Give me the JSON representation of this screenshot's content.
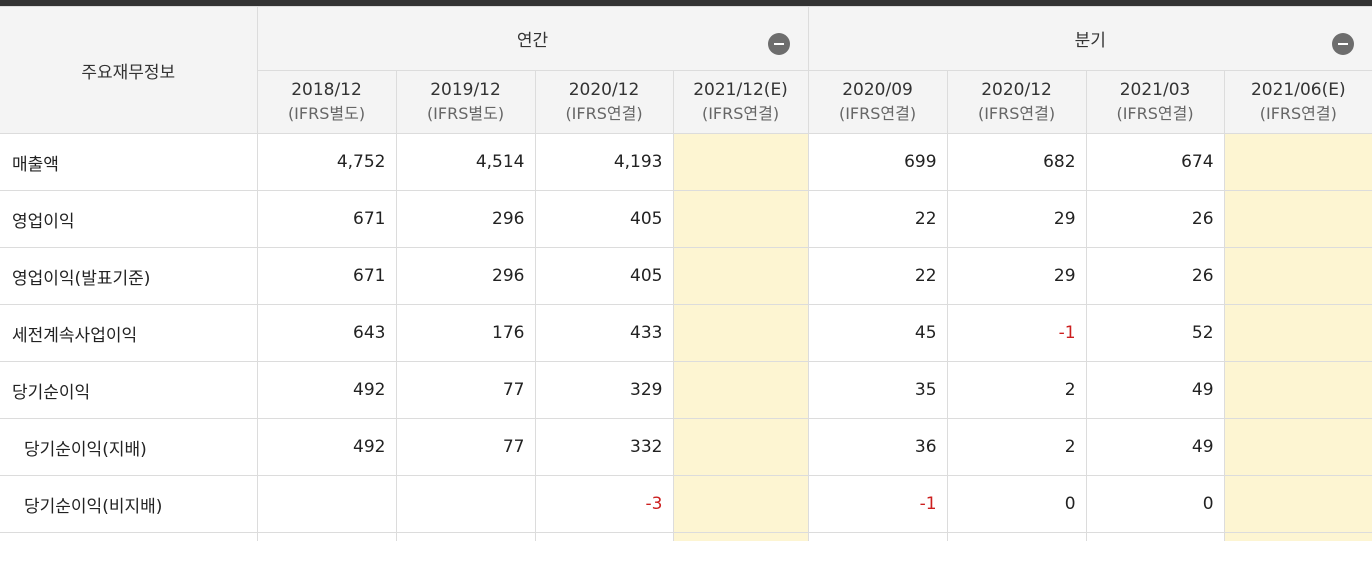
{
  "header": {
    "corner": "주요재무정보",
    "groups": {
      "annual": "연간",
      "quarter": "분기"
    },
    "periods": [
      {
        "date": "2018/12",
        "basis": "(IFRS별도)"
      },
      {
        "date": "2019/12",
        "basis": "(IFRS별도)"
      },
      {
        "date": "2020/12",
        "basis": "(IFRS연결)"
      },
      {
        "date": "2021/12(E)",
        "basis": "(IFRS연결)"
      },
      {
        "date": "2020/09",
        "basis": "(IFRS연결)"
      },
      {
        "date": "2020/12",
        "basis": "(IFRS연결)"
      },
      {
        "date": "2021/03",
        "basis": "(IFRS연결)"
      },
      {
        "date": "2021/06(E)",
        "basis": "(IFRS연결)"
      }
    ],
    "collapse_icon": "minus-circle-icon"
  },
  "colors": {
    "estimate_bg": "#fdf5d2",
    "negative": "#cc1f1f"
  },
  "rows": [
    {
      "label": "매출액",
      "values": [
        "4,752",
        "4,514",
        "4,193",
        "",
        "699",
        "682",
        "674",
        ""
      ]
    },
    {
      "label": "영업이익",
      "values": [
        "671",
        "296",
        "405",
        "",
        "22",
        "29",
        "26",
        ""
      ]
    },
    {
      "label": "영업이익(발표기준)",
      "values": [
        "671",
        "296",
        "405",
        "",
        "22",
        "29",
        "26",
        ""
      ]
    },
    {
      "label": "세전계속사업이익",
      "values": [
        "643",
        "176",
        "433",
        "",
        "45",
        "-1",
        "52",
        ""
      ]
    },
    {
      "label": "당기순이익",
      "values": [
        "492",
        "77",
        "329",
        "",
        "35",
        "2",
        "49",
        ""
      ]
    },
    {
      "label": "당기순이익(지배)",
      "values": [
        "492",
        "77",
        "332",
        "",
        "36",
        "2",
        "49",
        ""
      ]
    },
    {
      "label": "당기순이익(비지배)",
      "values": [
        "",
        "",
        "-3",
        "",
        "-1",
        "0",
        "0",
        ""
      ]
    }
  ]
}
